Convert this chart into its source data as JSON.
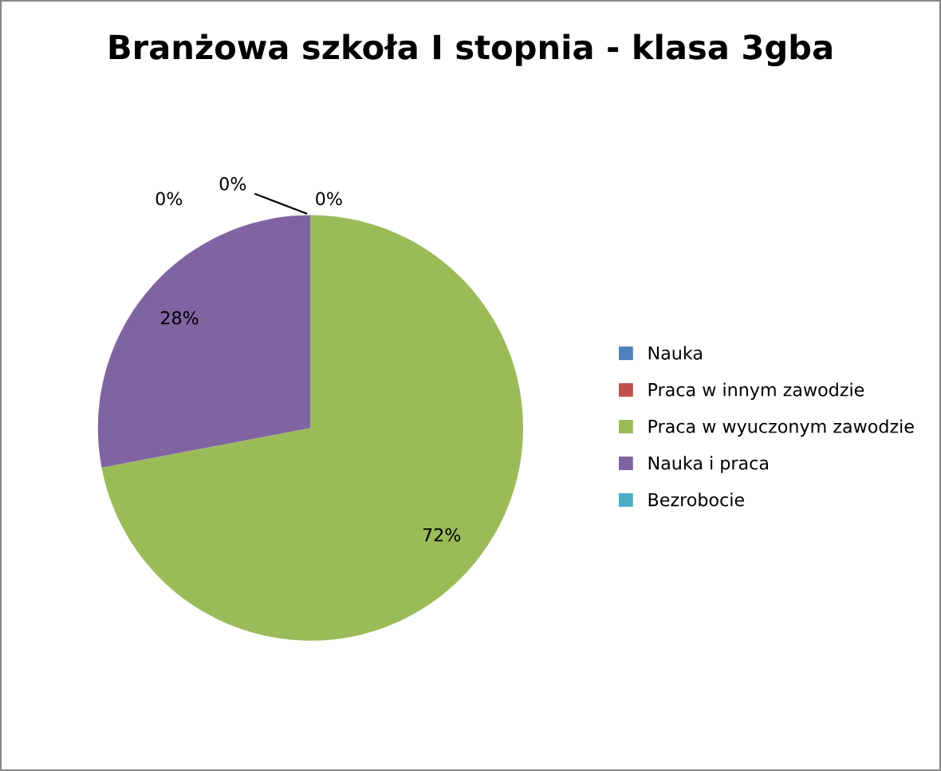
{
  "chart_data": {
    "type": "pie",
    "title": "Branżowa szkoła I stopnia - klasa 3gba",
    "categories": [
      "Nauka",
      "Praca w innym zawodzie",
      "Praca w wyuczonym zawodzie",
      "Nauka i praca",
      "Bezrobocie"
    ],
    "values": [
      0,
      0,
      72,
      28,
      0
    ],
    "colors": [
      "#4f81bd",
      "#c0504d",
      "#9bbb59",
      "#8064a2",
      "#4bacc6"
    ],
    "value_labels": [
      "0%",
      "0%",
      "72%",
      "28%",
      "0%"
    ],
    "legend": "right"
  }
}
